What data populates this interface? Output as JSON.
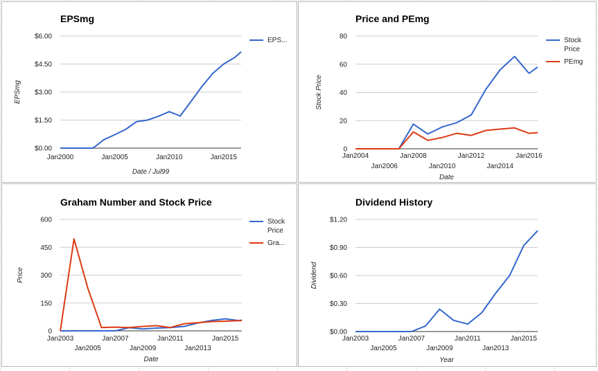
{
  "colors": {
    "blue": "#3366cc",
    "red": "#dc3912",
    "grid": "#cccccc",
    "axis": "#333333"
  },
  "chart_data": [
    {
      "type": "line",
      "title": "EPSmg",
      "xlabel": "Date / Jul99",
      "ylabel": "EPSmg",
      "xlim": [
        2000,
        2016.6
      ],
      "ylim": [
        0,
        6
      ],
      "y_ticks": [
        "$0.00",
        "$1.50",
        "$3.00",
        "$4.50",
        "$6.00"
      ],
      "x_ticks": [
        {
          "value": 2000,
          "label": "Jan2000"
        },
        {
          "value": 2005,
          "label": "Jan2005"
        },
        {
          "value": 2010,
          "label": "Jan2010"
        },
        {
          "value": 2015,
          "label": "Jan2015"
        }
      ],
      "legend_position": "right",
      "series": [
        {
          "name": "EPS...",
          "color": "blue",
          "x": [
            2000,
            2001,
            2002,
            2003,
            2004,
            2005,
            2006,
            2007,
            2008,
            2009,
            2010,
            2011,
            2012,
            2013,
            2014,
            2015,
            2016,
            2016.6
          ],
          "y": [
            0,
            0,
            0,
            0,
            0.45,
            0.72,
            1.0,
            1.42,
            1.5,
            1.7,
            1.95,
            1.72,
            2.5,
            3.3,
            4.0,
            4.5,
            4.85,
            5.15
          ]
        }
      ]
    },
    {
      "type": "line",
      "title": "Price and PEmg",
      "xlabel": "Date",
      "ylabel": "Stock Price",
      "xlim": [
        2004,
        2016.6
      ],
      "ylim": [
        0,
        80
      ],
      "y_ticks": [
        "0",
        "20",
        "40",
        "60",
        "80"
      ],
      "x_ticks": [
        {
          "value": 2004,
          "label": "Jan2004",
          "row": 1
        },
        {
          "value": 2006,
          "label": "Jan2006",
          "row": 2
        },
        {
          "value": 2008,
          "label": "Jan2008",
          "row": 1
        },
        {
          "value": 2010,
          "label": "Jan2010",
          "row": 2
        },
        {
          "value": 2012,
          "label": "Jan2012",
          "row": 1
        },
        {
          "value": 2014,
          "label": "Jan2014",
          "row": 2
        },
        {
          "value": 2016,
          "label": "Jan2016",
          "row": 1
        }
      ],
      "legend_position": "right",
      "series": [
        {
          "name": "Stock Price",
          "color": "blue",
          "x": [
            2004,
            2005,
            2006,
            2007,
            2008,
            2009,
            2010,
            2011,
            2012,
            2013,
            2014,
            2015,
            2016,
            2016.6
          ],
          "y": [
            0,
            0,
            0,
            0,
            17.5,
            10.5,
            15.5,
            18.5,
            24,
            42,
            56,
            65.5,
            53.5,
            58
          ]
        },
        {
          "name": "PEmg",
          "color": "red",
          "x": [
            2004,
            2005,
            2006,
            2007,
            2008,
            2009,
            2010,
            2011,
            2012,
            2013,
            2014,
            2015,
            2016,
            2016.6
          ],
          "y": [
            0,
            0,
            0,
            0,
            12,
            6,
            8,
            11,
            9.5,
            13,
            14,
            14.8,
            11,
            11.5
          ]
        }
      ]
    },
    {
      "type": "line",
      "title": "Graham Number and Stock Price",
      "xlabel": "Date",
      "ylabel": "Price",
      "xlim": [
        2003,
        2016.2
      ],
      "ylim": [
        0,
        600
      ],
      "y_ticks": [
        "0",
        "150",
        "300",
        "450",
        "600"
      ],
      "x_ticks": [
        {
          "value": 2003,
          "label": "Jan2003",
          "row": 1
        },
        {
          "value": 2005,
          "label": "Jan2005",
          "row": 2
        },
        {
          "value": 2007,
          "label": "Jan2007",
          "row": 1
        },
        {
          "value": 2009,
          "label": "Jan2009",
          "row": 2
        },
        {
          "value": 2011,
          "label": "Jan2011",
          "row": 1
        },
        {
          "value": 2013,
          "label": "Jan2013",
          "row": 2
        },
        {
          "value": 2015,
          "label": "Jan2015",
          "row": 1
        }
      ],
      "legend_position": "right",
      "series": [
        {
          "name": "Stock Price",
          "color": "blue",
          "x": [
            2003,
            2004,
            2005,
            2006,
            2007,
            2008,
            2009,
            2010,
            2011,
            2012,
            2013,
            2014,
            2015,
            2016,
            2016.2
          ],
          "y": [
            0,
            0,
            0,
            0,
            0,
            17,
            10,
            15,
            18,
            24,
            42,
            56,
            65,
            55,
            58
          ]
        },
        {
          "name": "Gra...",
          "color": "red",
          "x": [
            2003,
            2004,
            2005,
            2006,
            2007,
            2008,
            2009,
            2010,
            2011,
            2012,
            2013,
            2014,
            2015,
            2016,
            2016.2
          ],
          "y": [
            0,
            495,
            230,
            18,
            20,
            18,
            24,
            28,
            18,
            38,
            44,
            50,
            52,
            55,
            55
          ]
        }
      ]
    },
    {
      "type": "line",
      "title": "Dividend History",
      "xlabel": "Year",
      "ylabel": "Dividend",
      "xlim": [
        2003,
        2016
      ],
      "ylim": [
        0,
        1.2
      ],
      "y_ticks": [
        "$0.00",
        "$0.30",
        "$0.60",
        "$0.90",
        "$1.20"
      ],
      "x_ticks": [
        {
          "value": 2003,
          "label": "Jan2003",
          "row": 1
        },
        {
          "value": 2005,
          "label": "Jan2005",
          "row": 2
        },
        {
          "value": 2007,
          "label": "Jan2007",
          "row": 1
        },
        {
          "value": 2009,
          "label": "Jan2009",
          "row": 2
        },
        {
          "value": 2011,
          "label": "Jan2011",
          "row": 1
        },
        {
          "value": 2013,
          "label": "Jan2013",
          "row": 2
        },
        {
          "value": 2015,
          "label": "Jan2015",
          "row": 1
        }
      ],
      "legend_position": "none",
      "series": [
        {
          "color": "blue",
          "x": [
            2003,
            2004,
            2005,
            2006,
            2007,
            2008,
            2009,
            2010,
            2011,
            2012,
            2013,
            2014,
            2015,
            2016
          ],
          "y": [
            0,
            0,
            0,
            0,
            0,
            0.06,
            0.24,
            0.12,
            0.08,
            0.2,
            0.41,
            0.6,
            0.92,
            1.08
          ]
        }
      ]
    }
  ]
}
